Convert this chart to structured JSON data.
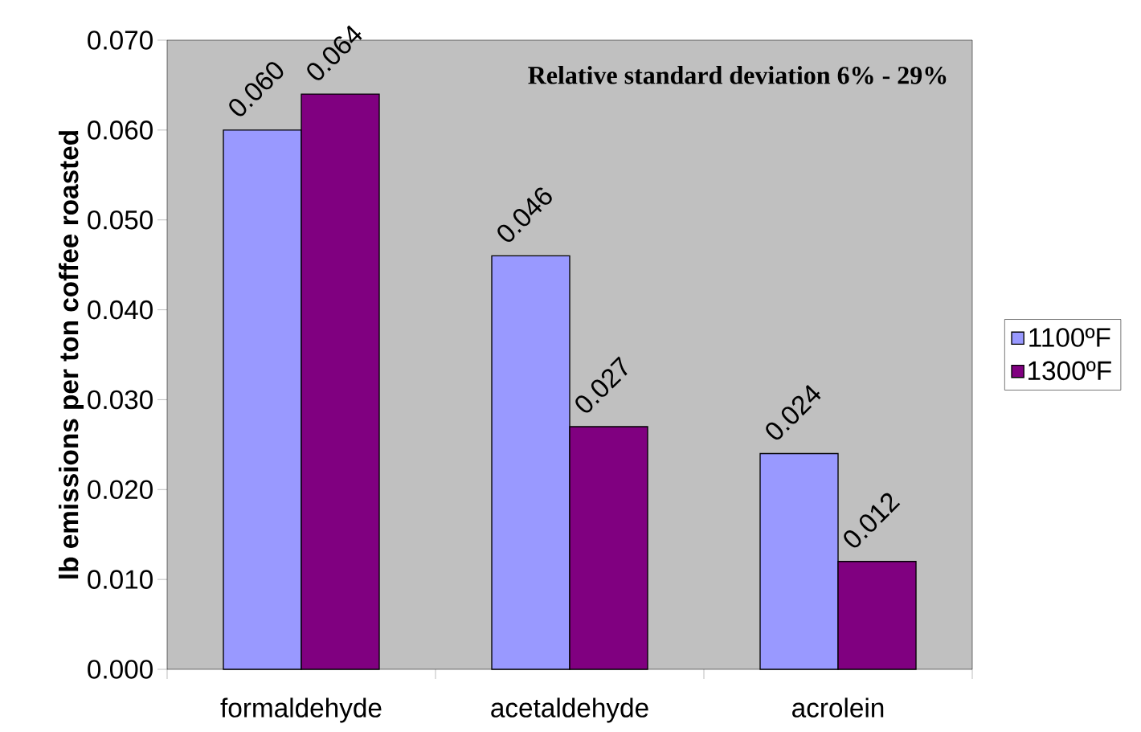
{
  "chart_data": {
    "type": "bar",
    "ylabel": "lb emissions per ton coffee roasted",
    "categories": [
      "formaldehyde",
      "acetaldehyde",
      "acrolein"
    ],
    "series": [
      {
        "name": "1100ºF",
        "color": "#9999ff",
        "values": [
          0.06,
          0.046,
          0.024
        ],
        "value_labels": [
          "0.060",
          "0.046",
          "0.024"
        ]
      },
      {
        "name": "1300ºF",
        "color": "#800080",
        "values": [
          0.064,
          0.027,
          0.012
        ],
        "value_labels": [
          "0.064",
          "0.027",
          "0.012"
        ]
      }
    ],
    "ylim": [
      0,
      0.07
    ],
    "yticks": [
      {
        "value": 0,
        "label": "0.000"
      },
      {
        "value": 0.01,
        "label": "0.010"
      },
      {
        "value": 0.02,
        "label": "0.020"
      },
      {
        "value": 0.03,
        "label": "0.030"
      },
      {
        "value": 0.04,
        "label": "0.040"
      },
      {
        "value": 0.05,
        "label": "0.050"
      },
      {
        "value": 0.06,
        "label": "0.060"
      },
      {
        "value": 0.07,
        "label": "0.070"
      }
    ],
    "legend": "right",
    "annotations": [
      "Relative standard deviation 6% - 29%"
    ]
  }
}
